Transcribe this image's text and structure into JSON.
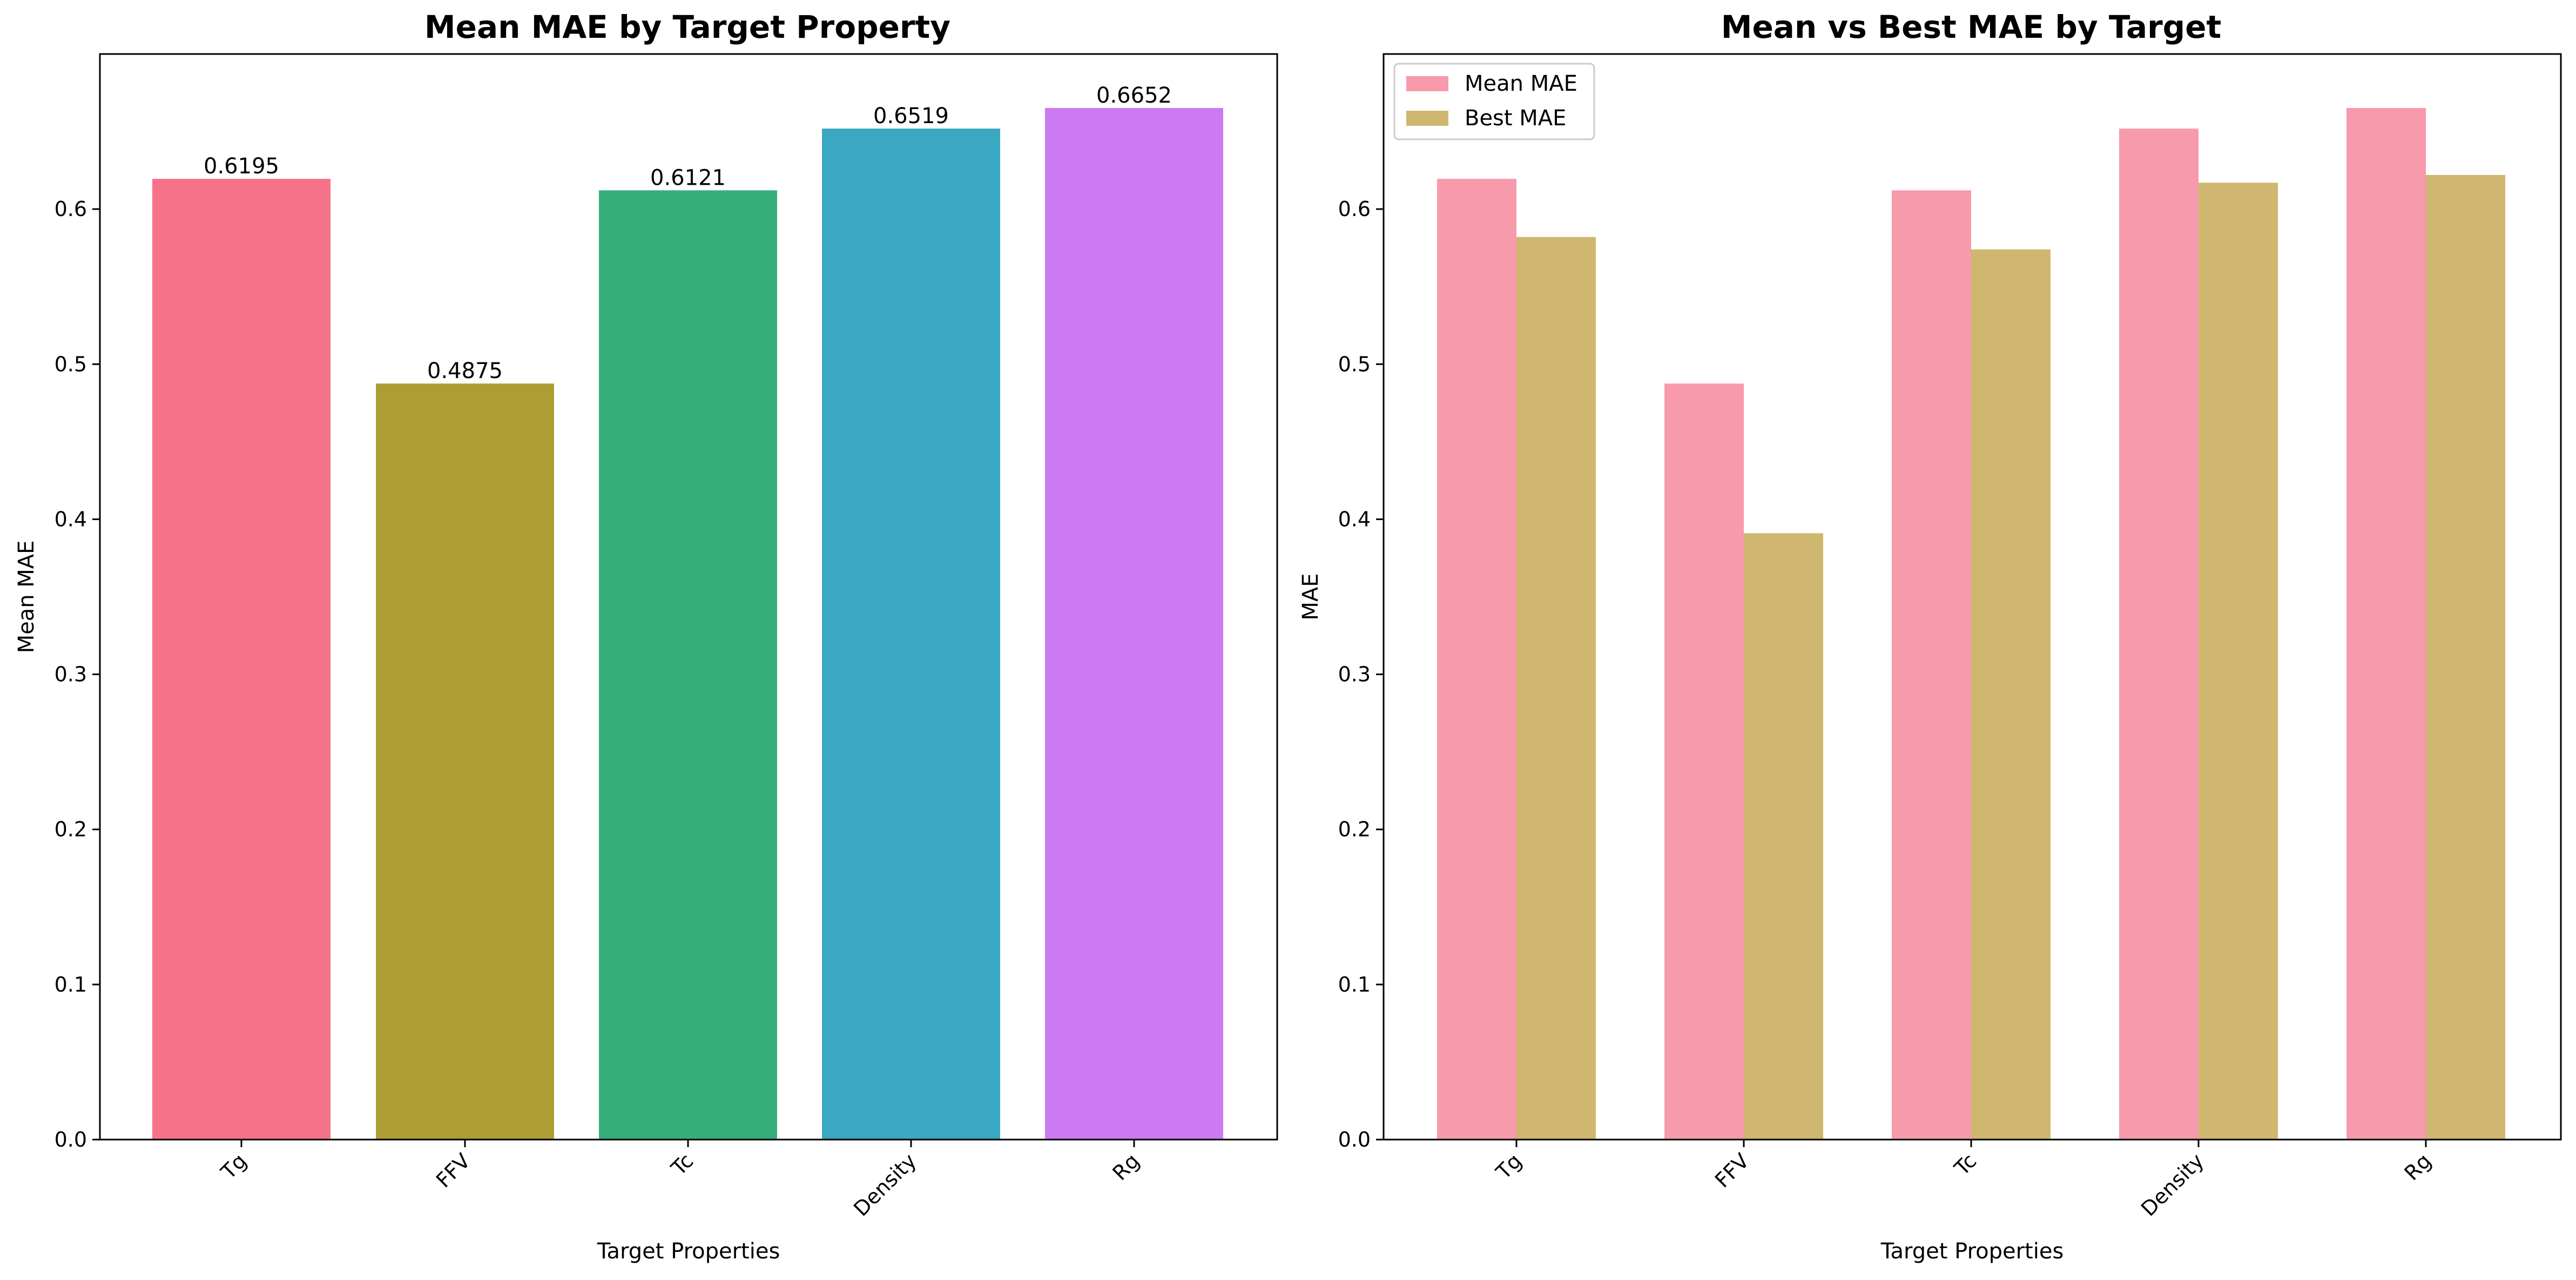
{
  "chart_data": [
    {
      "type": "bar",
      "title": "Mean MAE by Target Property",
      "xlabel": "Target Properties",
      "ylabel": "Mean MAE",
      "categories": [
        "Tg",
        "FFV",
        "Tc",
        "Density",
        "Rg"
      ],
      "values": [
        0.6195,
        0.4875,
        0.6121,
        0.6519,
        0.6652
      ],
      "value_labels": [
        "0.6195",
        "0.4875",
        "0.6121",
        "0.6519",
        "0.6652"
      ],
      "colors": [
        "#f67289",
        "#ad9e33",
        "#35af7a",
        "#3aa8c3",
        "#cc7af2"
      ],
      "ylim": [
        0,
        0.7
      ],
      "yticks": [
        "0.0",
        "0.1",
        "0.2",
        "0.3",
        "0.4",
        "0.5",
        "0.6"
      ],
      "grid": false
    },
    {
      "type": "bar",
      "title": "Mean vs Best MAE by Target",
      "xlabel": "Target Properties",
      "ylabel": "MAE",
      "categories": [
        "Tg",
        "FFV",
        "Tc",
        "Density",
        "Rg"
      ],
      "series": [
        {
          "name": "Mean MAE",
          "color": "#f79aac",
          "values": [
            0.6195,
            0.4875,
            0.6121,
            0.6519,
            0.6652
          ]
        },
        {
          "name": "Best MAE",
          "color": "#cfb76f",
          "values": [
            0.582,
            0.391,
            0.574,
            0.617,
            0.622
          ]
        }
      ],
      "ylim": [
        0,
        0.7
      ],
      "yticks": [
        "0.0",
        "0.1",
        "0.2",
        "0.3",
        "0.4",
        "0.5",
        "0.6"
      ],
      "legend": "top-left",
      "grid": false
    }
  ]
}
